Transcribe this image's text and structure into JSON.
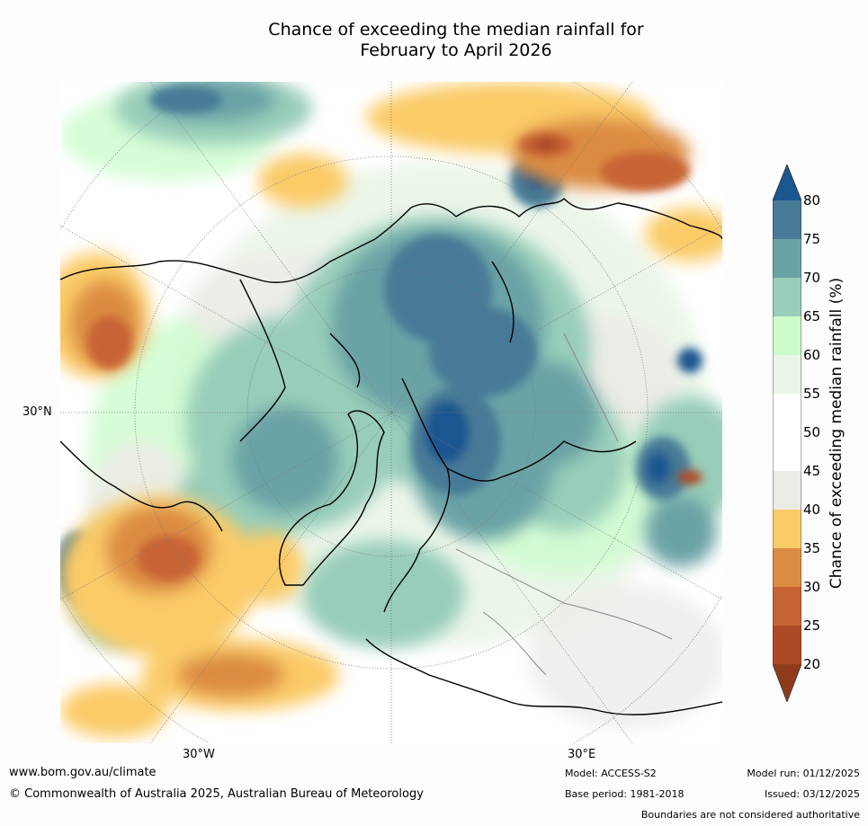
{
  "title": {
    "line1": "Chance of exceeding the median rainfall for",
    "line2": "February to April 2026"
  },
  "map": {
    "latitude_label": "30°N",
    "longitude_labels": [
      "30°W",
      "30°E"
    ]
  },
  "legend": {
    "label": "Chance of exceeding median rainfall (%)",
    "ticks": [
      "20",
      "25",
      "30",
      "35",
      "40",
      "45",
      "50",
      "55",
      "60",
      "65",
      "70",
      "75",
      "80"
    ],
    "bins": [
      {
        "range": "<20",
        "color": "#8f3b1b"
      },
      {
        "range": "20-25",
        "color": "#ad4a26"
      },
      {
        "range": "25-30",
        "color": "#c86434"
      },
      {
        "range": "30-35",
        "color": "#dc8c42"
      },
      {
        "range": "35-40",
        "color": "#fbcb68"
      },
      {
        "range": "40-45",
        "color": "#ecebe6"
      },
      {
        "range": "45-50",
        "color": "#ffffff"
      },
      {
        "range": "50-55",
        "color": "#ffffff"
      },
      {
        "range": "55-60",
        "color": "#e9f5e7"
      },
      {
        "range": "60-65",
        "color": "#ccfccc"
      },
      {
        "range": "65-70",
        "color": "#98cdb9"
      },
      {
        "range": "70-75",
        "color": "#6aa3a6"
      },
      {
        "range": "75-80",
        "color": "#467a97"
      },
      {
        "range": ">80",
        "color": "#1a5690"
      }
    ]
  },
  "footer": {
    "website": "www.bom.gov.au/climate",
    "copyright": "© Commonwealth of Australia 2025, Australian Bureau of Meteorology",
    "model": "Model: ACCESS-S2",
    "base_period": "Base period: 1981-2018",
    "model_run": "Model run: 01/12/2025",
    "issued": "Issued: 03/12/2025",
    "disclaimer": "Boundaries are not considered authoritative"
  }
}
